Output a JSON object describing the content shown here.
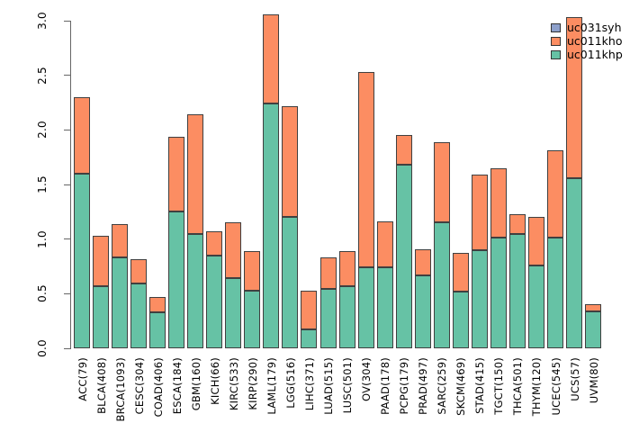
{
  "chart_data": {
    "type": "bar",
    "stacked": true,
    "title": "",
    "xlabel": "",
    "ylabel": "",
    "ylim": [
      0,
      3.0
    ],
    "y_tick_labels": [
      "0.0",
      "0.5",
      "1.0",
      "1.5",
      "2.0",
      "2.5",
      "3.0"
    ],
    "grid": false,
    "legend_position": "top-right",
    "legend_entries": [
      "uc031syh",
      "uc011kho",
      "uc011khp"
    ],
    "categories": [
      "ACC(79)",
      "BLCA(408)",
      "BRCA(1093)",
      "CESC(304)",
      "COAD(406)",
      "ESCA(184)",
      "GBM(160)",
      "KICH(66)",
      "KIRC(533)",
      "KIRP(290)",
      "LAML(179)",
      "LGG(516)",
      "LIHC(371)",
      "LUAD(515)",
      "LUSC(501)",
      "OV(304)",
      "PAAD(178)",
      "PCPG(179)",
      "PRAD(497)",
      "SARC(259)",
      "SKCM(469)",
      "STAD(415)",
      "TGCT(150)",
      "THCA(501)",
      "THYM(120)",
      "UCEC(545)",
      "UCS(57)",
      "UVM(80)"
    ],
    "series": [
      {
        "name": "uc031syh",
        "color": "#8DA0CB",
        "values": [
          0,
          0,
          0,
          0,
          0,
          0,
          0,
          0,
          0,
          0,
          0,
          0,
          0,
          0,
          0,
          0,
          0,
          0,
          0,
          0,
          0,
          0,
          0,
          0,
          0,
          0,
          0,
          0
        ]
      },
      {
        "name": "uc011kho",
        "color": "#FC8D62",
        "values": [
          0.7,
          0.46,
          0.31,
          0.23,
          0.14,
          0.69,
          1.09,
          0.22,
          0.51,
          0.36,
          0.82,
          1.02,
          0.36,
          0.29,
          0.32,
          1.79,
          0.42,
          0.27,
          0.24,
          0.74,
          0.35,
          0.69,
          0.64,
          0.18,
          0.44,
          0.8,
          1.47,
          0.06
        ]
      },
      {
        "name": "uc011khp",
        "color": "#66C2A5",
        "values": [
          1.6,
          0.57,
          0.83,
          0.59,
          0.33,
          1.25,
          1.05,
          0.85,
          0.64,
          0.53,
          2.24,
          1.2,
          0.17,
          0.54,
          0.57,
          0.74,
          0.74,
          1.68,
          0.67,
          1.15,
          0.52,
          0.9,
          1.01,
          1.05,
          0.76,
          1.01,
          1.56,
          0.34
        ]
      }
    ],
    "colors": {
      "bar_border": "#404040",
      "axis": "#666666",
      "text": "#000000",
      "background": "#ffffff"
    }
  }
}
